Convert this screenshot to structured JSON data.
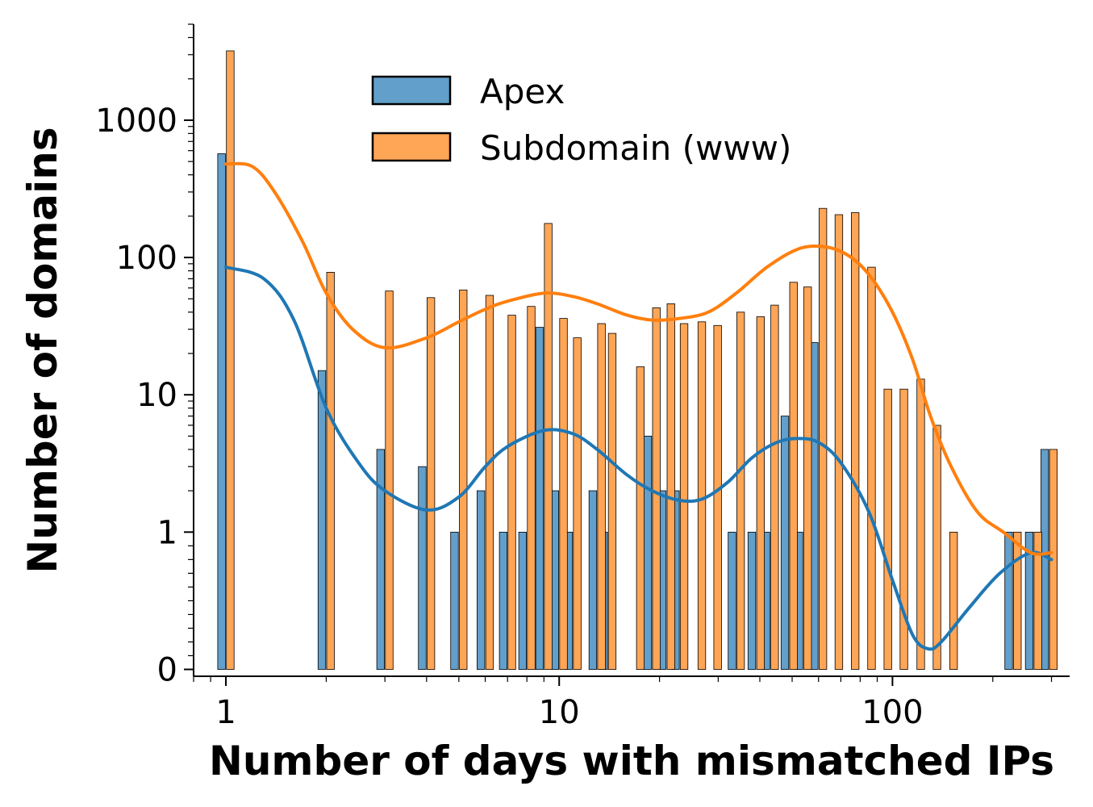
{
  "chart_data": {
    "type": "bar",
    "title": "",
    "xlabel": "Number of days with mismatched IPs",
    "ylabel": "Number of domains",
    "x_scale": "log",
    "y_scale": "symlog",
    "xlim": [
      0.8,
      340
    ],
    "ylim": [
      -0.05,
      5000
    ],
    "x_ticks": [
      {
        "value": 1,
        "label": "1"
      },
      {
        "value": 10,
        "label": "10"
      },
      {
        "value": 100,
        "label": "100"
      }
    ],
    "y_ticks": [
      {
        "value": 0,
        "label": "0"
      },
      {
        "value": 1,
        "label": "1"
      },
      {
        "value": 10,
        "label": "10"
      },
      {
        "value": 100,
        "label": "100"
      },
      {
        "value": 1000,
        "label": "1000"
      }
    ],
    "legend": {
      "position": "top-center"
    },
    "series": [
      {
        "name": "Apex",
        "color": "#1f77b4",
        "fill": "#629fca",
        "bars": [
          {
            "x": 1,
            "value": 570
          },
          {
            "x": 2,
            "value": 15
          },
          {
            "x": 3,
            "value": 4
          },
          {
            "x": 4,
            "value": 3
          },
          {
            "x": 5,
            "value": 1
          },
          {
            "x": 6,
            "value": 2
          },
          {
            "x": 7,
            "value": 1
          },
          {
            "x": 8,
            "value": 1
          },
          {
            "x": 9,
            "value": 31
          },
          {
            "x": 10,
            "value": 2
          },
          {
            "x": 11,
            "value": 1
          },
          {
            "x": 13,
            "value": 2
          },
          {
            "x": 14,
            "value": 1
          },
          {
            "x": 19,
            "value": 5
          },
          {
            "x": 21,
            "value": 2
          },
          {
            "x": 23,
            "value": 2
          },
          {
            "x": 34,
            "value": 1
          },
          {
            "x": 39,
            "value": 1
          },
          {
            "x": 43,
            "value": 1
          },
          {
            "x": 49,
            "value": 7
          },
          {
            "x": 54,
            "value": 1
          },
          {
            "x": 60,
            "value": 24
          },
          {
            "x": 230,
            "value": 1
          },
          {
            "x": 265,
            "value": 1
          },
          {
            "x": 295,
            "value": 4
          }
        ],
        "kde": [
          [
            1,
            85
          ],
          [
            1.3,
            70
          ],
          [
            1.6,
            35
          ],
          [
            2,
            8
          ],
          [
            2.5,
            3.2
          ],
          [
            3,
            2
          ],
          [
            4,
            1.45
          ],
          [
            5,
            1.8
          ],
          [
            6,
            3
          ],
          [
            7,
            4.2
          ],
          [
            9,
            5.5
          ],
          [
            11,
            5.2
          ],
          [
            13,
            4
          ],
          [
            16,
            2.6
          ],
          [
            19,
            2
          ],
          [
            23,
            1.7
          ],
          [
            27,
            1.75
          ],
          [
            32,
            2.3
          ],
          [
            38,
            3.5
          ],
          [
            45,
            4.5
          ],
          [
            52,
            4.8
          ],
          [
            60,
            4.5
          ],
          [
            70,
            3.2
          ],
          [
            85,
            1.4
          ],
          [
            100,
            0.65
          ],
          [
            115,
            0.25
          ],
          [
            128,
            0.15
          ],
          [
            140,
            0.2
          ],
          [
            170,
            0.45
          ],
          [
            210,
            0.7
          ],
          [
            260,
            0.85
          ],
          [
            300,
            0.8
          ]
        ]
      },
      {
        "name": "Subdomain (www)",
        "color": "#ff7f0e",
        "fill": "#ffa556",
        "bars": [
          {
            "x": 1,
            "value": 3200
          },
          {
            "x": 2,
            "value": 78
          },
          {
            "x": 3,
            "value": 57
          },
          {
            "x": 4,
            "value": 51
          },
          {
            "x": 5,
            "value": 58
          },
          {
            "x": 6,
            "value": 53
          },
          {
            "x": 7,
            "value": 38
          },
          {
            "x": 8,
            "value": 44
          },
          {
            "x": 9,
            "value": 177
          },
          {
            "x": 10,
            "value": 36
          },
          {
            "x": 11,
            "value": 26
          },
          {
            "x": 13,
            "value": 33
          },
          {
            "x": 14,
            "value": 28
          },
          {
            "x": 17,
            "value": 16
          },
          {
            "x": 19,
            "value": 43
          },
          {
            "x": 21,
            "value": 46
          },
          {
            "x": 23,
            "value": 33
          },
          {
            "x": 26,
            "value": 34
          },
          {
            "x": 29,
            "value": 32
          },
          {
            "x": 34,
            "value": 40
          },
          {
            "x": 39,
            "value": 37
          },
          {
            "x": 43,
            "value": 45
          },
          {
            "x": 49,
            "value": 66
          },
          {
            "x": 54,
            "value": 61
          },
          {
            "x": 60,
            "value": 228
          },
          {
            "x": 67,
            "value": 205
          },
          {
            "x": 75,
            "value": 212
          },
          {
            "x": 84,
            "value": 85
          },
          {
            "x": 94,
            "value": 11
          },
          {
            "x": 105,
            "value": 11
          },
          {
            "x": 118,
            "value": 13
          },
          {
            "x": 132,
            "value": 6
          },
          {
            "x": 148,
            "value": 1
          },
          {
            "x": 230,
            "value": 1
          },
          {
            "x": 265,
            "value": 1
          },
          {
            "x": 295,
            "value": 4
          }
        ],
        "kde": [
          [
            1,
            480
          ],
          [
            1.2,
            460
          ],
          [
            1.4,
            300
          ],
          [
            1.7,
            130
          ],
          [
            2,
            55
          ],
          [
            2.4,
            30
          ],
          [
            3,
            22
          ],
          [
            4,
            26
          ],
          [
            5,
            34
          ],
          [
            6,
            42
          ],
          [
            7,
            48
          ],
          [
            9,
            55
          ],
          [
            11,
            52
          ],
          [
            13,
            46
          ],
          [
            16,
            38
          ],
          [
            19,
            35
          ],
          [
            23,
            36
          ],
          [
            28,
            40
          ],
          [
            34,
            55
          ],
          [
            42,
            85
          ],
          [
            52,
            115
          ],
          [
            62,
            120
          ],
          [
            73,
            105
          ],
          [
            85,
            75
          ],
          [
            100,
            40
          ],
          [
            115,
            18
          ],
          [
            130,
            7
          ],
          [
            150,
            3
          ],
          [
            180,
            1.4
          ],
          [
            215,
            1
          ],
          [
            260,
            0.85
          ],
          [
            300,
            0.85
          ]
        ]
      }
    ]
  }
}
